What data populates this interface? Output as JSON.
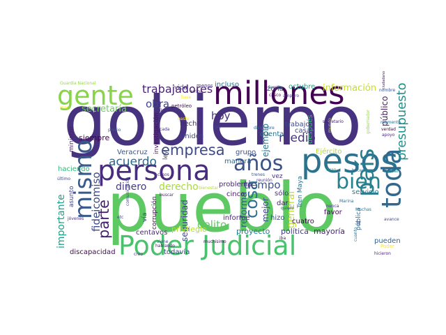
{
  "wordcloud": {
    "words": [
      {
        "text": "gobierno",
        "color": "#46327e"
      },
      {
        "text": "pueblo",
        "color": "#5ec962"
      },
      {
        "text": "millones",
        "color": "#440154"
      },
      {
        "text": "persona",
        "color": "#472d7b"
      },
      {
        "text": "pesos",
        "color": "#2c728e"
      },
      {
        "text": "Poder Judicial",
        "color": "#4ac16d"
      },
      {
        "text": "toda",
        "color": "#31688e"
      },
      {
        "text": "gente",
        "color": "#86d549"
      },
      {
        "text": "país",
        "color": "#287d8e"
      },
      {
        "text": "mismo",
        "color": "#38598c"
      },
      {
        "text": "bien",
        "color": "#26828e"
      },
      {
        "text": "años",
        "color": "#3b528b"
      },
      {
        "text": "empresa",
        "color": "#3e4989"
      },
      {
        "text": "trabajadores",
        "color": "#482173"
      },
      {
        "text": "presupuesto",
        "color": "#21918c"
      },
      {
        "text": "cosa",
        "color": "#2d708e"
      },
      {
        "text": "parte",
        "color": "#481f70"
      },
      {
        "text": "fideicomiso",
        "color": "#3e4a89"
      },
      {
        "text": "importante",
        "color": "#1fa088"
      },
      {
        "text": "general",
        "color": "#bddf26"
      },
      {
        "text": "hoy",
        "color": "#472d7b"
      },
      {
        "text": "acuerdo",
        "color": "#31688e"
      },
      {
        "text": "obra",
        "color": "#414487"
      },
      {
        "text": "secretaría",
        "color": "#6ccd5a"
      },
      {
        "text": "dinero",
        "color": "#443983"
      },
      {
        "text": "derecho",
        "color": "#a8db34"
      },
      {
        "text": "medio",
        "color": "#46337f"
      },
      {
        "text": "tiempo",
        "color": "#3b528b"
      },
      {
        "text": "delito",
        "color": "#5ec962"
      },
      {
        "text": "información",
        "color": "#c8e020"
      },
      {
        "text": "seguridad",
        "color": "#404588"
      },
      {
        "text": "reforma",
        "color": "#365c8d"
      },
      {
        "text": "ejemplo",
        "color": "#2a788e"
      },
      {
        "text": "mejor",
        "color": "#3f4788"
      },
      {
        "text": "octubre",
        "color": "#1f9e89"
      },
      {
        "text": "zona",
        "color": "#3e4989"
      },
      {
        "text": "público",
        "color": "#481a6c"
      },
      {
        "text": "discapacidad",
        "color": "#46085c"
      },
      {
        "text": "después",
        "color": "#3aba76"
      },
      {
        "text": "centavos",
        "color": "#482878"
      },
      {
        "text": "privilegio",
        "color": "#b5de2b"
      },
      {
        "text": "proyecto",
        "color": "#2a788e"
      },
      {
        "text": "política",
        "color": "#443a83"
      },
      {
        "text": "mayoría",
        "color": "#482173"
      },
      {
        "text": "pueden",
        "color": "#33638d"
      },
      {
        "text": "todavía",
        "color": "#414487"
      },
      {
        "text": "siempre",
        "color": "#440154"
      },
      {
        "text": "incluso",
        "color": "#2d708e"
      },
      {
        "text": "Unidos",
        "color": "#414487"
      },
      {
        "text": "Veracruz",
        "color": "#39568c"
      },
      {
        "text": "haciendo",
        "color": "#35b779"
      },
      {
        "text": "grupo",
        "color": "#3b528b"
      },
      {
        "text": "manera",
        "color": "#31688e"
      },
      {
        "text": "casa",
        "color": "#3e4989"
      },
      {
        "text": "cuenta",
        "color": "#2c728e"
      },
      {
        "text": "trabajo",
        "color": "#3e4989"
      },
      {
        "text": "hecho",
        "color": "#482878"
      },
      {
        "text": "vida",
        "color": "#453781"
      },
      {
        "text": "Tren Maya",
        "color": "#2c728e"
      },
      {
        "text": "servicio",
        "color": "#287d8e"
      },
      {
        "text": "informe",
        "color": "#482677"
      },
      {
        "text": "sólo",
        "color": "#46337f"
      },
      {
        "text": "dar",
        "color": "#481a6c"
      },
      {
        "text": "hizo",
        "color": "#3e4989"
      },
      {
        "text": "favor",
        "color": "#46085c"
      },
      {
        "text": "Ejército",
        "color": "#addc30"
      },
      {
        "text": "problema",
        "color": "#482576"
      },
      {
        "text": "cinco",
        "color": "#481b6d"
      },
      {
        "text": "cuatro",
        "color": "#440154"
      },
      {
        "text": "ministro",
        "color": "#481f70"
      },
      {
        "text": "asunto",
        "color": "#414487"
      },
      {
        "text": "investigación",
        "color": "#471063"
      },
      {
        "text": "corrupción",
        "color": "#440154"
      },
      {
        "text": "vía",
        "color": "#414487"
      },
      {
        "text": "ley",
        "color": "#3e4989"
      },
      {
        "text": "vez",
        "color": "#46337f"
      },
      {
        "text": "ir",
        "color": "#3b528b"
      },
      {
        "text": "pública",
        "color": "#31688e"
      },
      {
        "text": "Guardia Nacional",
        "color": "#95d840"
      },
      {
        "text": "petróleo",
        "color": "#440154"
      },
      {
        "text": "menos",
        "color": "#46327e"
      },
      {
        "text": "arriba",
        "color": "#481a6c"
      },
      {
        "text": "familia",
        "color": "#2a788e"
      },
      {
        "text": "casco",
        "color": "#440154"
      },
      {
        "text": "amparo",
        "color": "#443983"
      },
      {
        "text": "secretario",
        "color": "#482071"
      },
      {
        "text": "mundo",
        "color": "#b5de2b"
      },
      {
        "text": "tan",
        "color": "#3e4989"
      },
      {
        "text": "diciembre",
        "color": "#33638d"
      },
      {
        "text": "momento",
        "color": "#2d708e"
      },
      {
        "text": "verdad",
        "color": "#440154"
      },
      {
        "text": "apoyo",
        "color": "#472c7a"
      },
      {
        "text": "social",
        "color": "#23888e"
      },
      {
        "text": "precio",
        "color": "#38598c"
      },
      {
        "text": "cada",
        "color": "#472d7b"
      },
      {
        "text": "Tren",
        "color": "#46327e"
      },
      {
        "text": "casos",
        "color": "#482677"
      },
      {
        "text": "último",
        "color": "#3e4989"
      },
      {
        "text": "buscar",
        "color": "#482677"
      },
      {
        "text": "viene",
        "color": "#3e4989"
      },
      {
        "text": "hablando",
        "color": "#482173"
      },
      {
        "text": "muchísimo",
        "color": "#46085c"
      },
      {
        "text": "bienestar",
        "color": "#b8de29"
      },
      {
        "text": "trenes",
        "color": "#3b528b"
      },
      {
        "text": "reunión",
        "color": "#46337f"
      },
      {
        "text": "quiero",
        "color": "#433e85"
      },
      {
        "text": "nunca",
        "color": "#46327e"
      },
      {
        "text": "Marina",
        "color": "#2c728e"
      },
      {
        "text": "avance",
        "color": "#3e4989"
      },
      {
        "text": "Muchas",
        "color": "#2a788e"
      },
      {
        "text": "jóvenes",
        "color": "#472d7b"
      },
      {
        "text": "comunicación",
        "color": "#404588"
      },
      {
        "text": "creo",
        "color": "#472d7b"
      },
      {
        "text": "iba",
        "color": "#471063"
      },
      {
        "text": "hicieron",
        "color": "#482677"
      },
      {
        "text": "Poder",
        "color": "#fde725"
      },
      {
        "text": "cuanto",
        "color": "#2d708e"
      },
      {
        "text": "gobernador",
        "color": "#95d840"
      },
      {
        "text": "nombre",
        "color": "#3b528b"
      },
      {
        "text": "ciudadano",
        "color": "#481a6c"
      },
      {
        "text": "Gran",
        "color": "#1fa188"
      },
      {
        "text": "hacer",
        "color": "#2c728e"
      },
      {
        "text": "etc",
        "color": "#3e4989"
      },
      {
        "text": "mar",
        "color": "#fde725"
      },
      {
        "text": "base",
        "color": "#fde725"
      },
      {
        "text": "gasto",
        "color": "#fde725"
      }
    ]
  }
}
